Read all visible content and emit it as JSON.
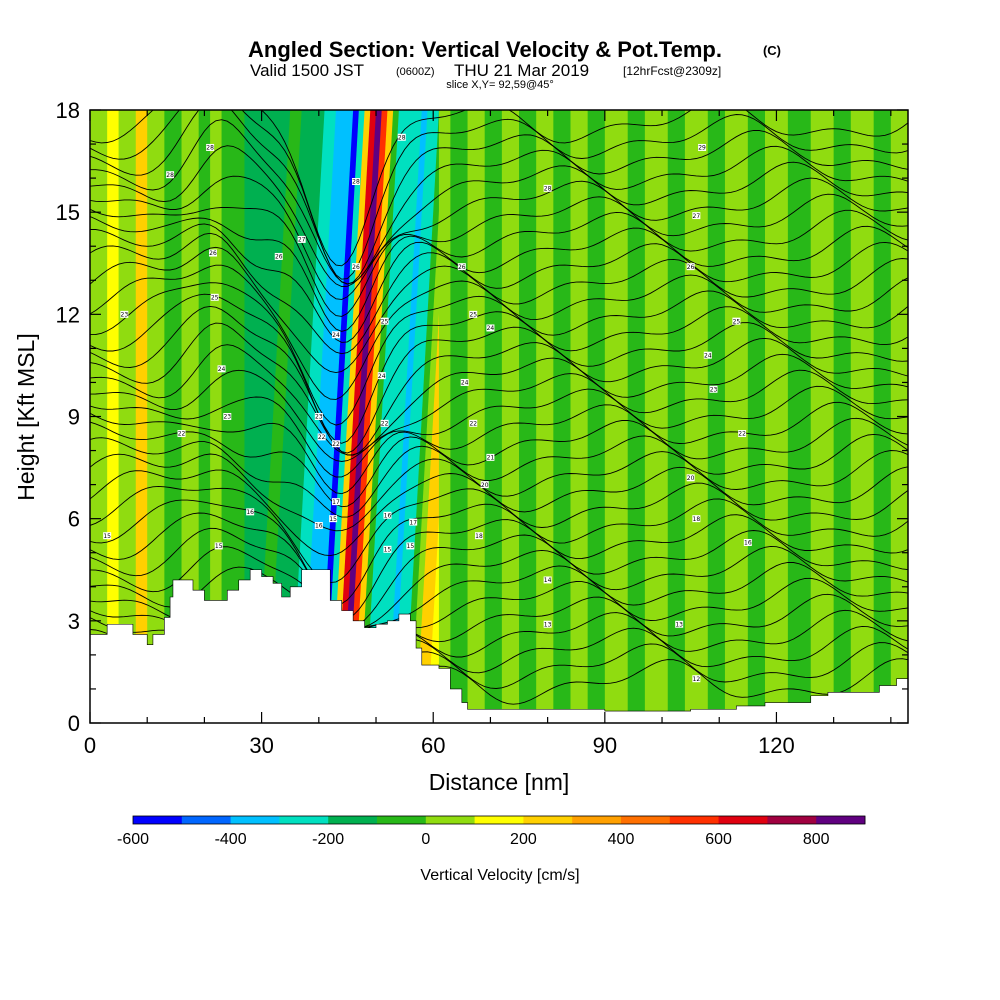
{
  "chart_data": {
    "type": "heatmap",
    "title": "Angled Section: Vertical Velocity & Pot.Temp.",
    "title_unit": "(C)",
    "subtitle": {
      "valid": "Valid 1500 JST",
      "zulu": "(0600Z)",
      "date": "THU 21 Mar 2019",
      "forecast": "[12hrFcst@2309z]"
    },
    "slice_label": "slice X,Y= 92,59@45°",
    "xlabel": "Distance [nm]",
    "ylabel": "Height [Kft MSL]",
    "xlim": [
      0,
      143
    ],
    "ylim": [
      0,
      18
    ],
    "x_ticks": [
      "0",
      "30",
      "60",
      "90",
      "120"
    ],
    "x_tick_values": [
      0,
      30,
      60,
      90,
      120
    ],
    "y_ticks": [
      "0",
      "3",
      "6",
      "9",
      "12",
      "15",
      "18"
    ],
    "y_tick_values": [
      0,
      3,
      6,
      9,
      12,
      15,
      18
    ],
    "colorbar": {
      "label": "Vertical Velocity [cm/s]",
      "min": -600,
      "max": 900,
      "step": 100,
      "colors": [
        "#0000ff",
        "#0066ff",
        "#00c0ff",
        "#00e0c0",
        "#00b050",
        "#28b818",
        "#90dc10",
        "#ffff00",
        "#ffd000",
        "#ffa000",
        "#ff7000",
        "#ff3000",
        "#e00010",
        "#a00040",
        "#600080"
      ],
      "tick_labels": [
        "-600",
        "-400",
        "-200",
        "0",
        "200",
        "400",
        "600",
        "800"
      ],
      "tick_values": [
        -600,
        -400,
        -200,
        0,
        200,
        400,
        600,
        800
      ]
    },
    "bands": [
      {
        "x": 0,
        "value": 50
      },
      {
        "x": 3,
        "value": 120
      },
      {
        "x": 5,
        "value": 30
      },
      {
        "x": 8,
        "value": 210
      },
      {
        "x": 10,
        "value": 60
      },
      {
        "x": 13,
        "value": -30
      },
      {
        "x": 16,
        "value": 40
      },
      {
        "x": 19,
        "value": -60
      },
      {
        "x": 21,
        "value": 30
      },
      {
        "x": 23,
        "value": -80
      },
      {
        "x": 25,
        "value": -30
      },
      {
        "x": 27,
        "value": -120
      },
      {
        "x": 29,
        "value": -60
      },
      {
        "x": 31,
        "value": -180
      },
      {
        "x": 33,
        "value": -200
      },
      {
        "x": 35,
        "value": -280
      },
      {
        "x": 37,
        "value": -320
      },
      {
        "x": 39,
        "value": -400
      },
      {
        "x": 40,
        "value": -520
      },
      {
        "x": 41,
        "value": -250
      },
      {
        "x": 42,
        "value": 250
      },
      {
        "x": 43,
        "value": 650
      },
      {
        "x": 44,
        "value": 800
      },
      {
        "x": 45,
        "value": 550
      },
      {
        "x": 46,
        "value": 200
      },
      {
        "x": 47,
        "value": -80
      },
      {
        "x": 48,
        "value": -300
      },
      {
        "x": 50,
        "value": -250
      },
      {
        "x": 52,
        "value": -400
      },
      {
        "x": 53,
        "value": -220
      },
      {
        "x": 55,
        "value": -50
      },
      {
        "x": 56,
        "value": 20
      },
      {
        "x": 57,
        "value": 230
      },
      {
        "x": 59,
        "value": 120
      },
      {
        "x": 61,
        "value": 40
      },
      {
        "x": 63,
        "value": -30
      },
      {
        "x": 66,
        "value": 40
      },
      {
        "x": 69,
        "value": -40
      },
      {
        "x": 72,
        "value": 50
      },
      {
        "x": 75,
        "value": -60
      },
      {
        "x": 78,
        "value": 40
      },
      {
        "x": 81,
        "value": -30
      },
      {
        "x": 84,
        "value": 50
      },
      {
        "x": 87,
        "value": -40
      },
      {
        "x": 90,
        "value": 30
      },
      {
        "x": 94,
        "value": -50
      },
      {
        "x": 97,
        "value": 40
      },
      {
        "x": 101,
        "value": -60
      },
      {
        "x": 104,
        "value": 30
      },
      {
        "x": 108,
        "value": -50
      },
      {
        "x": 111,
        "value": 40
      },
      {
        "x": 115,
        "value": -60
      },
      {
        "x": 118,
        "value": 30
      },
      {
        "x": 122,
        "value": -40
      },
      {
        "x": 126,
        "value": 40
      },
      {
        "x": 130,
        "value": -50
      },
      {
        "x": 133,
        "value": 30
      },
      {
        "x": 137,
        "value": -60
      },
      {
        "x": 140,
        "value": 40
      },
      {
        "x": 143,
        "value": 40
      }
    ],
    "terrain_kft": [
      {
        "x": 0,
        "h": 2.6
      },
      {
        "x": 3,
        "h": 2.9
      },
      {
        "x": 6,
        "h": 2.9
      },
      {
        "x": 7.5,
        "h": 2.6
      },
      {
        "x": 9,
        "h": 2.6
      },
      {
        "x": 10,
        "h": 2.3
      },
      {
        "x": 11,
        "h": 2.6
      },
      {
        "x": 13,
        "h": 3.1
      },
      {
        "x": 14,
        "h": 3.7
      },
      {
        "x": 14.5,
        "h": 4.2
      },
      {
        "x": 17,
        "h": 4.2
      },
      {
        "x": 18,
        "h": 3.9
      },
      {
        "x": 20,
        "h": 3.6
      },
      {
        "x": 22,
        "h": 3.6
      },
      {
        "x": 24,
        "h": 3.9
      },
      {
        "x": 26,
        "h": 4.2
      },
      {
        "x": 28,
        "h": 4.5
      },
      {
        "x": 30,
        "h": 4.3
      },
      {
        "x": 32,
        "h": 4.1
      },
      {
        "x": 33.5,
        "h": 3.7
      },
      {
        "x": 35,
        "h": 4.0
      },
      {
        "x": 37,
        "h": 4.5
      },
      {
        "x": 40.5,
        "h": 4.5
      },
      {
        "x": 42,
        "h": 3.6
      },
      {
        "x": 44,
        "h": 3.3
      },
      {
        "x": 46,
        "h": 3.0
      },
      {
        "x": 48,
        "h": 2.8
      },
      {
        "x": 50,
        "h": 2.9
      },
      {
        "x": 52,
        "h": 3.0
      },
      {
        "x": 54,
        "h": 3.2
      },
      {
        "x": 56,
        "h": 3.0
      },
      {
        "x": 57,
        "h": 2.2
      },
      {
        "x": 58,
        "h": 1.7
      },
      {
        "x": 61,
        "h": 1.6
      },
      {
        "x": 63,
        "h": 1.0
      },
      {
        "x": 65,
        "h": 0.6
      },
      {
        "x": 66,
        "h": 0.4
      },
      {
        "x": 67,
        "h": 0.4
      },
      {
        "x": 90,
        "h": 0.35
      },
      {
        "x": 100,
        "h": 0.35
      },
      {
        "x": 105,
        "h": 0.4
      },
      {
        "x": 113,
        "h": 0.5
      },
      {
        "x": 118,
        "h": 0.6
      },
      {
        "x": 126,
        "h": 0.8
      },
      {
        "x": 129,
        "h": 0.9
      },
      {
        "x": 138,
        "h": 1.1
      },
      {
        "x": 141,
        "h": 1.3
      },
      {
        "x": 143,
        "h": 1.3
      }
    ],
    "theta_contour_labels": [
      {
        "x": 3,
        "y": 5.5,
        "label": "15"
      },
      {
        "x": 6,
        "y": 12,
        "label": "23"
      },
      {
        "x": 14,
        "y": 16.1,
        "label": "28"
      },
      {
        "x": 16,
        "y": 8.5,
        "label": "22"
      },
      {
        "x": 21,
        "y": 16.9,
        "label": "28"
      },
      {
        "x": 21.5,
        "y": 13.8,
        "label": "26"
      },
      {
        "x": 21.8,
        "y": 12.5,
        "label": "25"
      },
      {
        "x": 23,
        "y": 10.4,
        "label": "24"
      },
      {
        "x": 24,
        "y": 9.0,
        "label": "23"
      },
      {
        "x": 22.5,
        "y": 5.2,
        "label": "15"
      },
      {
        "x": 28,
        "y": 6.2,
        "label": "16"
      },
      {
        "x": 33,
        "y": 13.7,
        "label": "26"
      },
      {
        "x": 37,
        "y": 14.2,
        "label": "27"
      },
      {
        "x": 40,
        "y": 9.0,
        "label": "23"
      },
      {
        "x": 40.5,
        "y": 8.4,
        "label": "22"
      },
      {
        "x": 40,
        "y": 5.8,
        "label": "16"
      },
      {
        "x": 43,
        "y": 11.4,
        "label": "24"
      },
      {
        "x": 43,
        "y": 8.2,
        "label": "22"
      },
      {
        "x": 42.5,
        "y": 6.0,
        "label": "15"
      },
      {
        "x": 43,
        "y": 6.5,
        "label": "17"
      },
      {
        "x": 46.5,
        "y": 15.9,
        "label": "28"
      },
      {
        "x": 46.5,
        "y": 13.4,
        "label": "26"
      },
      {
        "x": 51.5,
        "y": 11.8,
        "label": "25"
      },
      {
        "x": 51,
        "y": 10.2,
        "label": "24"
      },
      {
        "x": 51.5,
        "y": 8.8,
        "label": "22"
      },
      {
        "x": 52,
        "y": 6.1,
        "label": "16"
      },
      {
        "x": 52,
        "y": 5.1,
        "label": "15"
      },
      {
        "x": 54.5,
        "y": 17.2,
        "label": "28"
      },
      {
        "x": 56,
        "y": 5.2,
        "label": "15"
      },
      {
        "x": 56.5,
        "y": 5.9,
        "label": "17"
      },
      {
        "x": 65,
        "y": 13.4,
        "label": "26"
      },
      {
        "x": 67,
        "y": 12.0,
        "label": "25"
      },
      {
        "x": 70,
        "y": 11.6,
        "label": "24"
      },
      {
        "x": 65.5,
        "y": 10.0,
        "label": "24"
      },
      {
        "x": 67,
        "y": 8.8,
        "label": "22"
      },
      {
        "x": 70,
        "y": 7.8,
        "label": "21"
      },
      {
        "x": 69,
        "y": 7.0,
        "label": "20"
      },
      {
        "x": 68,
        "y": 5.5,
        "label": "18"
      },
      {
        "x": 80,
        "y": 15.7,
        "label": "28"
      },
      {
        "x": 80,
        "y": 4.2,
        "label": "14"
      },
      {
        "x": 80,
        "y": 2.9,
        "label": "13"
      },
      {
        "x": 107,
        "y": 16.9,
        "label": "29"
      },
      {
        "x": 106,
        "y": 14.9,
        "label": "27"
      },
      {
        "x": 105,
        "y": 13.4,
        "label": "26"
      },
      {
        "x": 113,
        "y": 11.8,
        "label": "25"
      },
      {
        "x": 108,
        "y": 10.8,
        "label": "24"
      },
      {
        "x": 109,
        "y": 9.8,
        "label": "23"
      },
      {
        "x": 114,
        "y": 8.5,
        "label": "22"
      },
      {
        "x": 105,
        "y": 7.2,
        "label": "20"
      },
      {
        "x": 106,
        "y": 6.0,
        "label": "18"
      },
      {
        "x": 115,
        "y": 5.3,
        "label": "16"
      },
      {
        "x": 103,
        "y": 2.9,
        "label": "13"
      },
      {
        "x": 106,
        "y": 1.3,
        "label": "12"
      }
    ]
  }
}
